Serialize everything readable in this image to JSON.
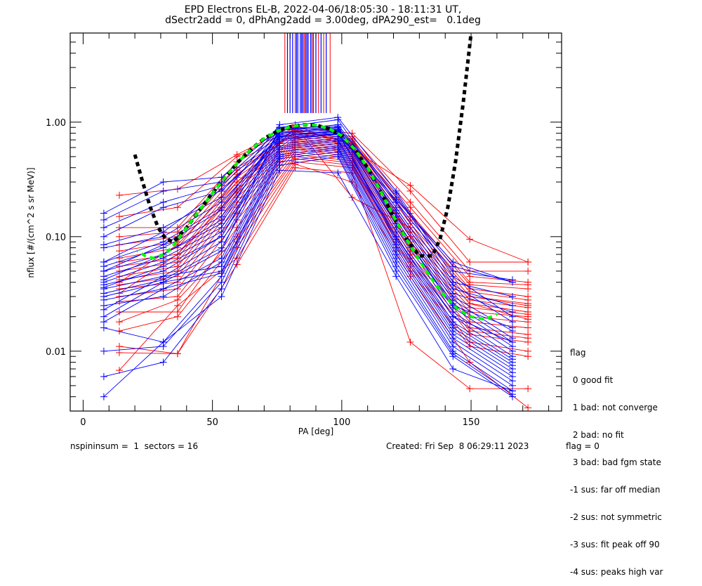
{
  "chart_data": {
    "type": "line",
    "title": "EPD Electrons EL-B, 2022-04-06/18:05:30 - 18:11:31 UT,",
    "subtitle": "dSectr2add = 0, dPhAng2add = 3.00deg, dPA290_est=   0.1deg",
    "xlabel": "PA [deg]",
    "ylabel": "nflux [#/(cm^2 s sr MeV)]",
    "xlim": [
      -5,
      185
    ],
    "ylim": [
      0.003,
      6.0
    ],
    "yscale": "log",
    "xticks": [
      0,
      50,
      100,
      150
    ],
    "xtick_labels": [
      "0",
      "50",
      "100",
      "150"
    ],
    "yticks": [
      0.01,
      0.1,
      1.0
    ],
    "ytick_labels": [
      "0.01",
      "0.10",
      "1.00"
    ],
    "blue_pa": [
      8,
      31,
      53.5,
      76,
      98.5,
      121,
      143,
      166
    ],
    "red_pa": [
      14,
      36.5,
      59.5,
      82,
      104,
      126.5,
      149.5,
      172
    ],
    "series": [
      {
        "name": "blue",
        "color": "#0000ff",
        "curves": [
          [
            0.16,
            0.3,
            0.33,
            0.9,
            1.05,
            0.2,
            0.05,
            0.042
          ],
          [
            0.14,
            0.25,
            0.3,
            0.85,
            0.95,
            0.22,
            0.055,
            0.04
          ],
          [
            0.12,
            0.2,
            0.28,
            0.8,
            0.9,
            0.24,
            0.04,
            0.03
          ],
          [
            0.1,
            0.18,
            0.25,
            0.75,
            0.85,
            0.18,
            0.035,
            0.025
          ],
          [
            0.085,
            0.12,
            0.22,
            0.95,
            1.1,
            0.25,
            0.045,
            0.02
          ],
          [
            0.08,
            0.1,
            0.2,
            0.7,
            0.8,
            0.2,
            0.038,
            0.018
          ],
          [
            0.06,
            0.09,
            0.18,
            0.88,
            0.92,
            0.16,
            0.03,
            0.015
          ],
          [
            0.055,
            0.08,
            0.15,
            0.82,
            0.88,
            0.15,
            0.028,
            0.013
          ],
          [
            0.05,
            0.07,
            0.14,
            0.78,
            0.83,
            0.14,
            0.026,
            0.012
          ],
          [
            0.045,
            0.065,
            0.12,
            0.74,
            0.8,
            0.13,
            0.024,
            0.011
          ],
          [
            0.04,
            0.06,
            0.11,
            0.7,
            0.78,
            0.12,
            0.022,
            0.01
          ],
          [
            0.038,
            0.05,
            0.1,
            0.68,
            0.75,
            0.11,
            0.02,
            0.009
          ],
          [
            0.035,
            0.045,
            0.09,
            0.65,
            0.72,
            0.1,
            0.018,
            0.0085
          ],
          [
            0.032,
            0.042,
            0.08,
            0.62,
            0.7,
            0.095,
            0.017,
            0.008
          ],
          [
            0.03,
            0.04,
            0.075,
            0.9,
            0.85,
            0.09,
            0.016,
            0.0075
          ],
          [
            0.028,
            0.035,
            0.065,
            0.6,
            0.68,
            0.085,
            0.015,
            0.007
          ],
          [
            0.025,
            0.03,
            0.06,
            0.58,
            0.65,
            0.08,
            0.014,
            0.0065
          ],
          [
            0.023,
            0.045,
            0.055,
            0.55,
            0.62,
            0.075,
            0.013,
            0.006
          ],
          [
            0.02,
            0.04,
            0.05,
            0.52,
            0.6,
            0.07,
            0.012,
            0.0055
          ],
          [
            0.018,
            0.035,
            0.048,
            0.5,
            0.58,
            0.065,
            0.011,
            0.005
          ],
          [
            0.016,
            0.012,
            0.045,
            0.48,
            0.55,
            0.06,
            0.01,
            0.0045
          ],
          [
            0.01,
            0.011,
            0.04,
            0.45,
            0.52,
            0.055,
            0.0095,
            0.0042
          ],
          [
            0.006,
            0.008,
            0.035,
            0.42,
            0.5,
            0.05,
            0.009,
            0.004
          ],
          [
            0.004,
            0.012,
            0.03,
            0.38,
            0.36,
            0.045,
            0.007,
            0.0045
          ],
          [
            0.06,
            0.11,
            0.26,
            0.72,
            0.79,
            0.21,
            0.06,
            0.04
          ],
          [
            0.05,
            0.085,
            0.17,
            0.8,
            0.86,
            0.17,
            0.032,
            0.022
          ],
          [
            0.042,
            0.07,
            0.13,
            0.85,
            0.9,
            0.13,
            0.025,
            0.016
          ],
          [
            0.036,
            0.055,
            0.1,
            0.76,
            0.82,
            0.1,
            0.02,
            0.012
          ]
        ]
      },
      {
        "name": "red",
        "color": "#ff0000",
        "curves": [
          [
            0.23,
            0.26,
            0.52,
            0.95,
            0.58,
            0.28,
            0.095,
            0.06
          ],
          [
            0.15,
            0.18,
            0.5,
            0.9,
            0.8,
            0.25,
            0.06,
            0.06
          ],
          [
            0.12,
            0.12,
            0.45,
            0.85,
            0.75,
            0.2,
            0.05,
            0.05
          ],
          [
            0.1,
            0.11,
            0.4,
            0.8,
            0.7,
            0.18,
            0.045,
            0.04
          ],
          [
            0.085,
            0.1,
            0.38,
            0.78,
            0.68,
            0.16,
            0.04,
            0.038
          ],
          [
            0.075,
            0.09,
            0.35,
            0.82,
            0.72,
            0.15,
            0.038,
            0.035
          ],
          [
            0.065,
            0.08,
            0.33,
            0.75,
            0.66,
            0.14,
            0.035,
            0.03
          ],
          [
            0.06,
            0.07,
            0.3,
            0.72,
            0.64,
            0.13,
            0.033,
            0.028
          ],
          [
            0.055,
            0.065,
            0.28,
            0.7,
            0.62,
            0.12,
            0.03,
            0.026
          ],
          [
            0.05,
            0.06,
            0.26,
            0.68,
            0.6,
            0.11,
            0.028,
            0.024
          ],
          [
            0.045,
            0.055,
            0.24,
            0.66,
            0.58,
            0.1,
            0.026,
            0.022
          ],
          [
            0.042,
            0.05,
            0.22,
            0.64,
            0.56,
            0.09,
            0.024,
            0.021
          ],
          [
            0.038,
            0.045,
            0.2,
            0.62,
            0.54,
            0.085,
            0.022,
            0.02
          ],
          [
            0.035,
            0.04,
            0.18,
            0.6,
            0.52,
            0.08,
            0.02,
            0.018
          ],
          [
            0.03,
            0.035,
            0.16,
            0.58,
            0.5,
            0.075,
            0.018,
            0.016
          ],
          [
            0.027,
            0.03,
            0.14,
            0.55,
            0.48,
            0.07,
            0.016,
            0.014
          ],
          [
            0.022,
            0.022,
            0.12,
            0.52,
            0.46,
            0.065,
            0.015,
            0.013
          ],
          [
            0.018,
            0.028,
            0.1,
            0.5,
            0.44,
            0.06,
            0.014,
            0.012
          ],
          [
            0.015,
            0.02,
            0.09,
            0.48,
            0.42,
            0.055,
            0.012,
            0.01
          ],
          [
            0.011,
            0.0095,
            0.08,
            0.45,
            0.4,
            0.05,
            0.011,
            0.009
          ],
          [
            0.0097,
            0.0095,
            0.057,
            0.4,
            0.36,
            0.012,
            0.0047,
            0.0047
          ],
          [
            0.0068,
            0.025,
            0.065,
            0.43,
            0.3,
            0.045,
            0.008,
            0.0032
          ],
          [
            0.032,
            0.07,
            0.25,
            0.92,
            0.22,
            0.12,
            0.03,
            0.025
          ],
          [
            0.04,
            0.085,
            0.3,
            0.88,
            0.65,
            0.1,
            0.026,
            0.019
          ]
        ]
      },
      {
        "name": "fit-black",
        "color": "#000000",
        "x": [
          20,
          23,
          26,
          29,
          32,
          35,
          40,
          45,
          50,
          55,
          60,
          65,
          70,
          75,
          80,
          85,
          90,
          95,
          100,
          105,
          110,
          115,
          120,
          125,
          130,
          135,
          138,
          141,
          144,
          147,
          150
        ],
        "y": [
          0.52,
          0.3,
          0.18,
          0.12,
          0.095,
          0.09,
          0.12,
          0.17,
          0.24,
          0.33,
          0.45,
          0.58,
          0.72,
          0.83,
          0.91,
          0.95,
          0.94,
          0.88,
          0.76,
          0.58,
          0.4,
          0.25,
          0.15,
          0.095,
          0.068,
          0.068,
          0.095,
          0.18,
          0.45,
          1.5,
          6.0
        ]
      },
      {
        "name": "fit-green",
        "color": "#00ff00",
        "x": [
          21,
          24,
          27,
          30,
          33,
          36,
          40,
          45,
          50,
          55,
          60,
          65,
          70,
          75,
          80,
          85,
          90,
          95,
          100,
          105,
          110,
          115,
          120,
          125,
          130,
          135,
          140,
          145,
          150,
          155,
          158,
          160
        ],
        "y": [
          0.075,
          0.068,
          0.065,
          0.068,
          0.075,
          0.09,
          0.12,
          0.17,
          0.24,
          0.33,
          0.45,
          0.58,
          0.72,
          0.83,
          0.91,
          0.95,
          0.94,
          0.88,
          0.76,
          0.58,
          0.4,
          0.25,
          0.15,
          0.095,
          0.062,
          0.042,
          0.03,
          0.023,
          0.02,
          0.019,
          0.02,
          0.021
        ]
      }
    ],
    "saturated_bars": {
      "blue_pa": [
        79,
        80,
        81,
        82.5,
        83,
        84,
        84.5,
        85,
        86,
        86.5,
        87,
        88,
        89,
        90,
        92,
        94
      ],
      "red_pa": [
        78,
        82,
        85.5,
        88.5,
        91,
        93,
        95.5
      ],
      "bottom_flux": 1.2
    },
    "legend": {
      "title": "flag",
      "entries": [
        " 0 good fit",
        " 1 bad: not converge",
        " 2 bad: no fit",
        " 3 bad: bad fgm state",
        "-1 sus: far off median",
        "-2 sus: not symmetric",
        "-3 sus: fit peak off 90",
        "-4 sus: peaks high var"
      ]
    }
  },
  "footer": {
    "left": "nspininsum =  1  sectors = 16",
    "created": "Created: Fri Sep  8 06:29:11 2023",
    "flag": "flag = 0"
  }
}
